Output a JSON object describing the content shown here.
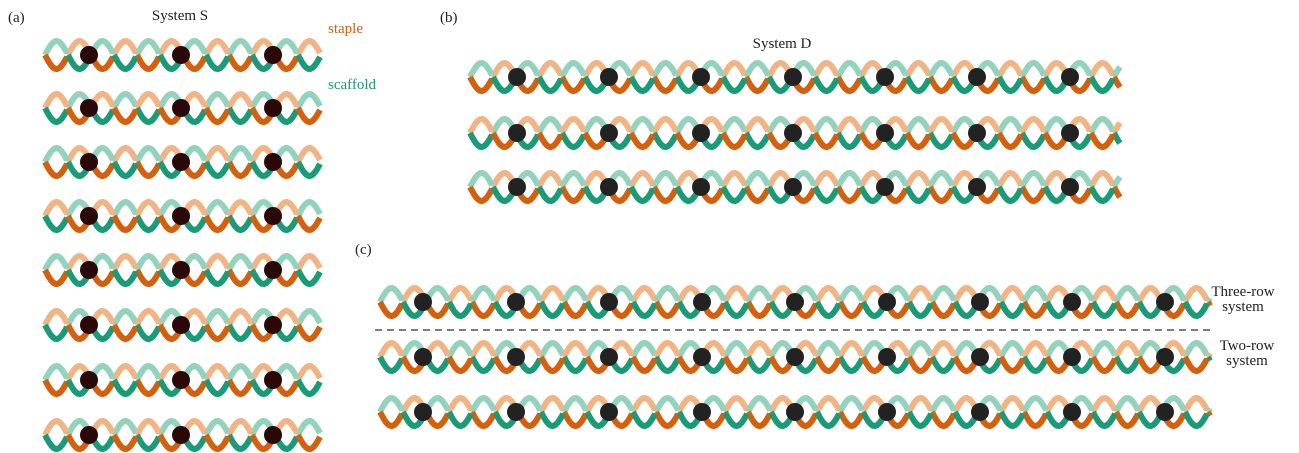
{
  "panels": [
    {
      "label": "(a)",
      "title": "System S",
      "legend": {
        "staple": "staple",
        "scaffold": "scaffold"
      }
    },
    {
      "label": "(b)",
      "title": "System D"
    },
    {
      "label": "(c)",
      "annotations": {
        "three_row": [
          "Three-row",
          "system"
        ],
        "two_row": [
          "Two-row",
          "system"
        ]
      }
    }
  ]
}
